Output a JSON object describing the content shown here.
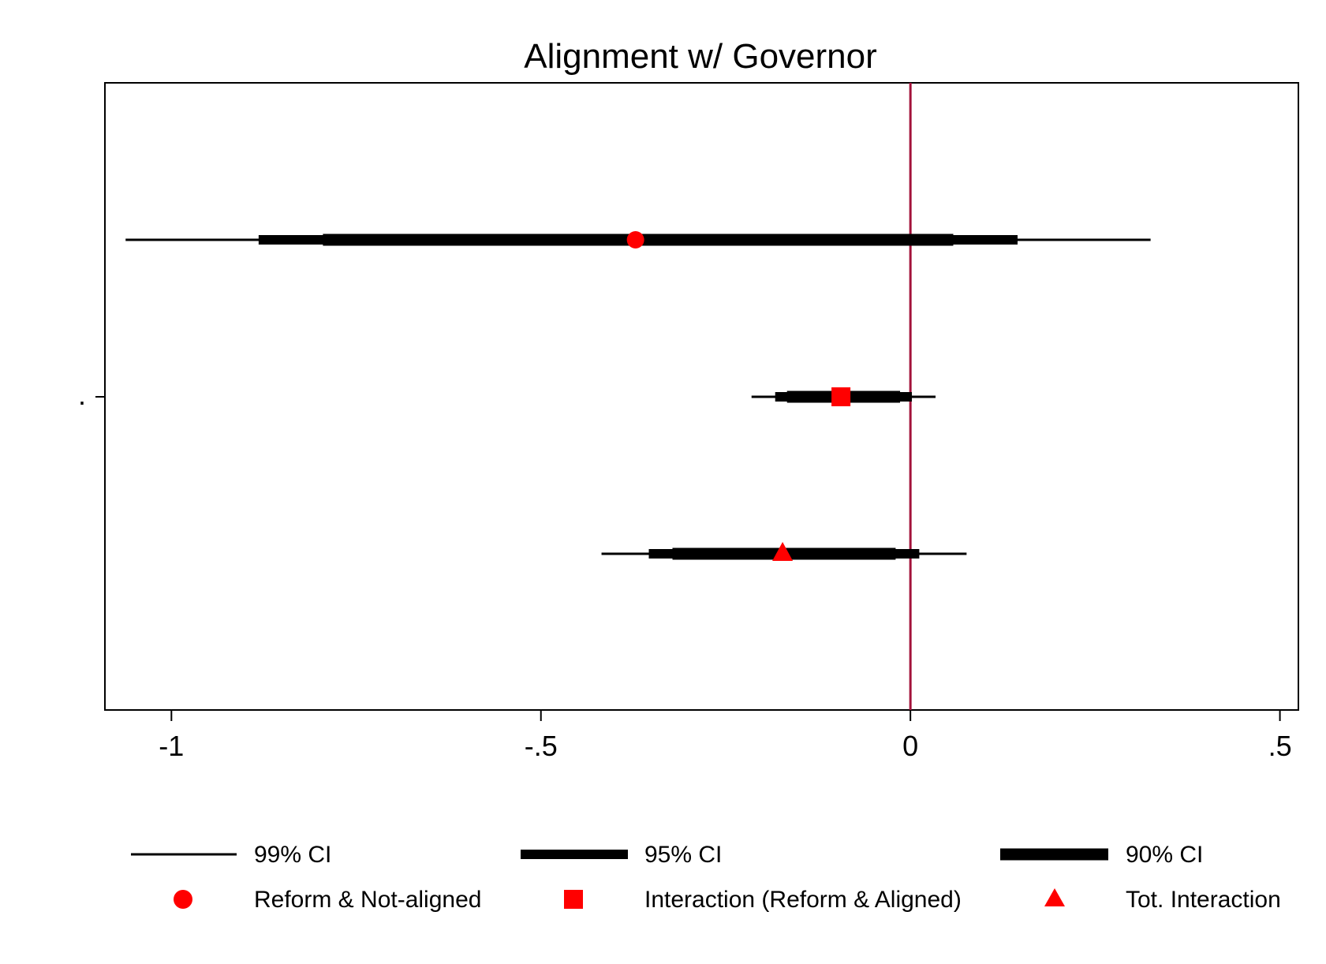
{
  "chart_data": {
    "type": "scatter",
    "title": "Alignment w/ Governor",
    "xlabel": "",
    "ylabel": "",
    "xlim": [
      -1.09,
      0.525
    ],
    "xticks": [
      -1,
      -0.5,
      0,
      0.5
    ],
    "xtick_labels": [
      "-1",
      "-.5",
      "0",
      ".5"
    ],
    "ytick_labels": [
      "."
    ],
    "reference_line": {
      "x": 0,
      "color": "#a3123a"
    },
    "marker_color": "#ff0000",
    "grid": false,
    "legend_position": "bottom",
    "series": [
      {
        "name": "Reform & Not-aligned",
        "marker": "circle",
        "estimate": -0.372,
        "ci90": [
          -0.795,
          0.058
        ],
        "ci95": [
          -0.882,
          0.145
        ],
        "ci99": [
          -1.062,
          0.325
        ]
      },
      {
        "name": "Interaction (Reform & Aligned)",
        "marker": "square",
        "estimate": -0.094,
        "ci90": [
          -0.167,
          -0.014
        ],
        "ci95": [
          -0.183,
          0.002
        ],
        "ci99": [
          -0.215,
          0.034
        ]
      },
      {
        "name": "Tot. Interaction",
        "marker": "triangle",
        "estimate": -0.173,
        "ci90": [
          -0.322,
          -0.02
        ],
        "ci95": [
          -0.354,
          0.012
        ],
        "ci99": [
          -0.418,
          0.076
        ]
      }
    ],
    "legend_ci": [
      "99% CI",
      "95% CI",
      "90% CI"
    ]
  }
}
